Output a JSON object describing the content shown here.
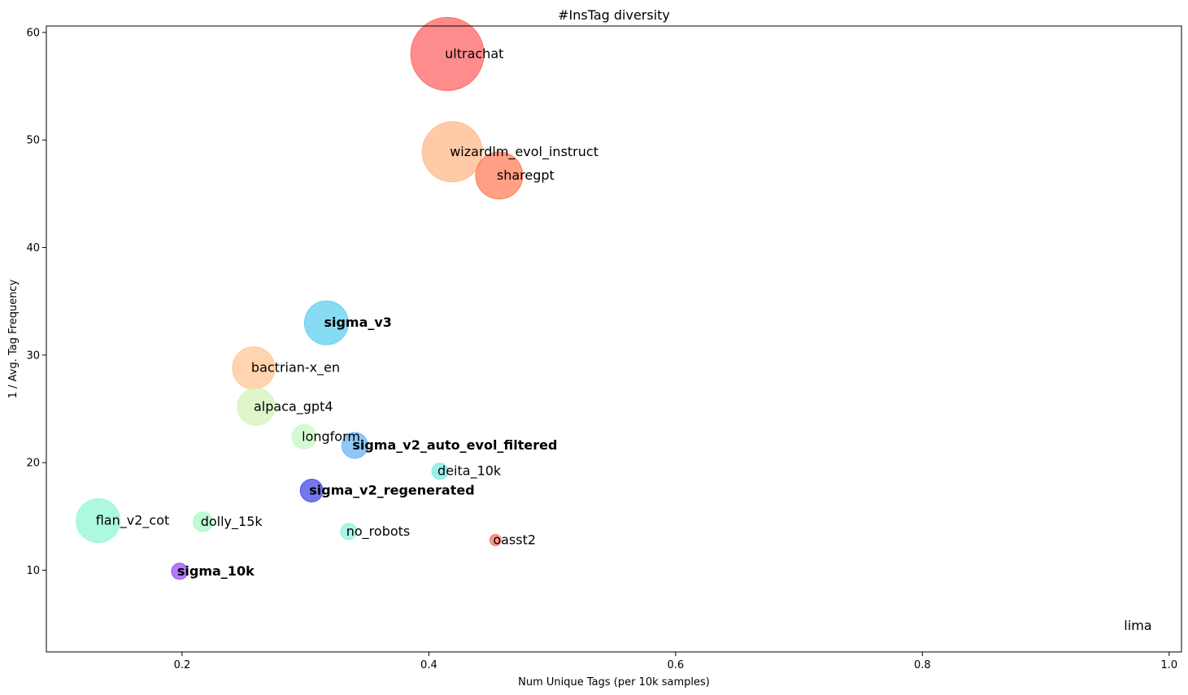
{
  "chart_data": {
    "type": "scatter",
    "title": "#InsTag diversity",
    "xlabel": "Num Unique Tags (per 10k samples)",
    "ylabel": "1 / Avg. Tag Frequency",
    "xlim": [
      0.09,
      1.01
    ],
    "ylim": [
      2.4,
      60.6
    ],
    "xticks": [
      0.2,
      0.4,
      0.6,
      0.8,
      1.0
    ],
    "xtick_labels": [
      "0.2",
      "0.4",
      "0.6",
      "0.8",
      "1.0"
    ],
    "yticks": [
      10,
      20,
      30,
      40,
      50,
      60
    ],
    "ytick_labels": [
      "10",
      "20",
      "30",
      "40",
      "50",
      "60"
    ],
    "grid": false,
    "bubble_size_shown": true,
    "points": [
      {
        "label": "ultrachat",
        "x": 0.415,
        "y": 58.0,
        "size": 45,
        "color": "#ff6666",
        "bold": false
      },
      {
        "label": "wizardlm_evol_instruct",
        "x": 0.419,
        "y": 48.9,
        "size": 37,
        "color": "#ffb88a",
        "bold": false
      },
      {
        "label": "sharegpt",
        "x": 0.457,
        "y": 46.7,
        "size": 29,
        "color": "#ff7f5a",
        "bold": false
      },
      {
        "label": "sigma_v3",
        "x": 0.317,
        "y": 33.0,
        "size": 27,
        "color": "#5fcfef",
        "bold": true
      },
      {
        "label": "bactrian-x_en",
        "x": 0.258,
        "y": 28.8,
        "size": 26,
        "color": "#ffc594",
        "bold": false
      },
      {
        "label": "alpaca_gpt4",
        "x": 0.26,
        "y": 25.2,
        "size": 23,
        "color": "#d5f3b8",
        "bold": false
      },
      {
        "label": "longform",
        "x": 0.299,
        "y": 22.4,
        "size": 15,
        "color": "#c6f8c6",
        "bold": false
      },
      {
        "label": "sigma_v2_auto_evol_filtered",
        "x": 0.34,
        "y": 21.6,
        "size": 16,
        "color": "#6ab4f3",
        "bold": true
      },
      {
        "label": "deita_10k",
        "x": 0.409,
        "y": 19.2,
        "size": 10,
        "color": "#7ee8e6",
        "bold": false
      },
      {
        "label": "sigma_v2_regenerated",
        "x": 0.305,
        "y": 17.4,
        "size": 14,
        "color": "#4848ea",
        "bold": true
      },
      {
        "label": "flan_v2_cot",
        "x": 0.132,
        "y": 14.6,
        "size": 27,
        "color": "#92f7d3",
        "bold": false
      },
      {
        "label": "dolly_15k",
        "x": 0.217,
        "y": 14.5,
        "size": 12,
        "color": "#a9f7c8",
        "bold": false
      },
      {
        "label": "no_robots",
        "x": 0.335,
        "y": 13.6,
        "size": 10,
        "color": "#90f0df",
        "bold": false
      },
      {
        "label": "oasst2",
        "x": 0.454,
        "y": 12.8,
        "size": 7,
        "color": "#f8735e",
        "bold": false
      },
      {
        "label": "sigma_10k",
        "x": 0.198,
        "y": 9.9,
        "size": 10,
        "color": "#9a4ff0",
        "bold": true
      },
      {
        "label": "lima",
        "x": 0.97,
        "y": 4.8,
        "size": 1,
        "color": "#ffcc80",
        "bold": false
      }
    ]
  }
}
